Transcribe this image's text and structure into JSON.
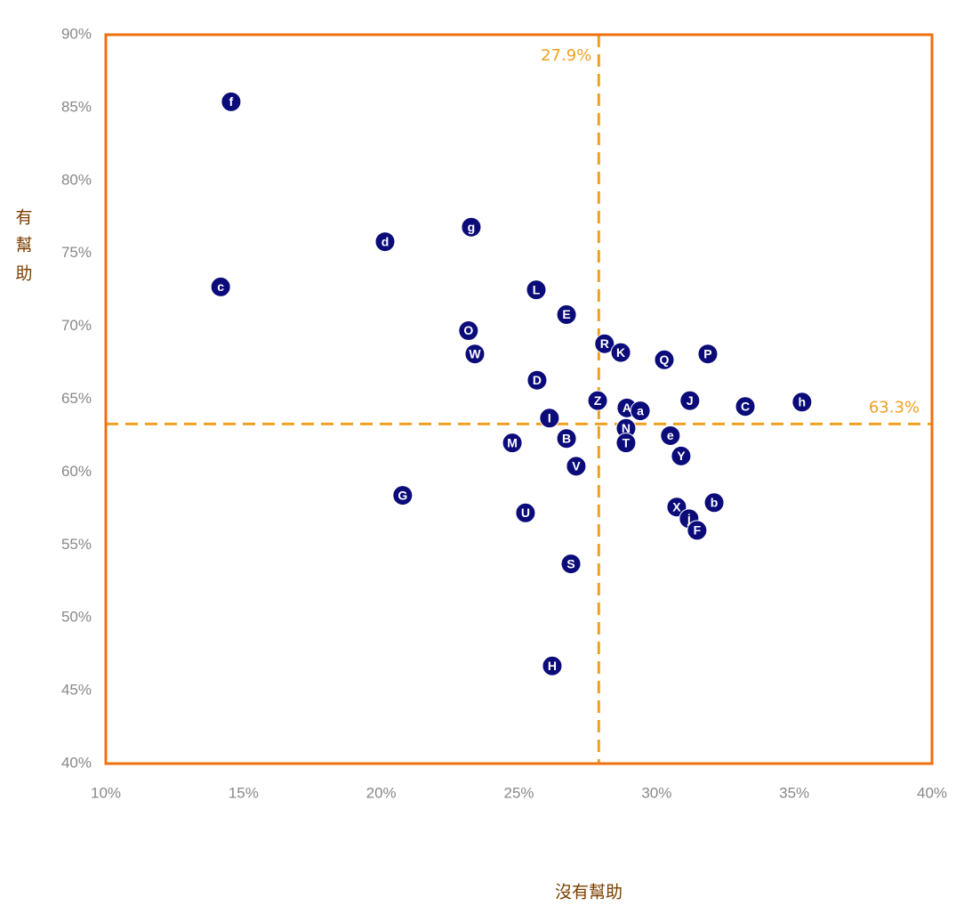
{
  "chart_data": {
    "type": "scatter",
    "x_label": "沒有幫助",
    "y_label": [
      "有",
      "幫",
      "助"
    ],
    "labels": [
      "f",
      "c",
      "d",
      "g",
      "L",
      "E",
      "O",
      "W",
      "R",
      "K",
      "Q",
      "P",
      "D",
      "Z",
      "A",
      "a",
      "J",
      "C",
      "h",
      "I",
      "N",
      "B",
      "e",
      "T",
      "M",
      "Y",
      "V",
      "G",
      "b",
      "U",
      "X",
      "j",
      "F",
      "S",
      "H"
    ],
    "x": [
      14.55,
      14.17,
      20.14,
      23.27,
      25.63,
      26.73,
      23.17,
      23.4,
      28.11,
      28.7,
      30.28,
      31.86,
      25.66,
      27.86,
      28.92,
      29.41,
      31.21,
      33.22,
      35.28,
      26.11,
      28.89,
      26.73,
      30.5,
      28.89,
      24.76,
      30.89,
      27.08,
      20.78,
      32.09,
      25.24,
      30.73,
      31.18,
      31.47,
      26.89,
      26.21
    ],
    "y": [
      85.4,
      72.7,
      75.8,
      76.8,
      72.5,
      70.8,
      69.7,
      68.1,
      68.8,
      68.2,
      67.7,
      68.1,
      66.3,
      64.9,
      64.4,
      64.2,
      64.9,
      64.5,
      64.8,
      63.7,
      63.0,
      62.3,
      62.5,
      62.0,
      62.0,
      61.1,
      60.4,
      58.4,
      57.9,
      57.2,
      57.6,
      56.8,
      56.0,
      53.7,
      46.7
    ],
    "color": "#0b0b7a",
    "xlim": [
      10,
      40
    ],
    "ylim": [
      40,
      90
    ],
    "xticks": [
      {
        "value": 10,
        "label": "10%"
      },
      {
        "value": 15,
        "label": "15%"
      },
      {
        "value": 20,
        "label": "20%"
      },
      {
        "value": 25,
        "label": "25%"
      },
      {
        "value": 30,
        "label": "30%"
      },
      {
        "value": 35,
        "label": "35%"
      },
      {
        "value": 40,
        "label": "40%"
      }
    ],
    "yticks": [
      {
        "value": 40,
        "label": "40%"
      },
      {
        "value": 45,
        "label": "45%"
      },
      {
        "value": 50,
        "label": "50%"
      },
      {
        "value": 55,
        "label": "55%"
      },
      {
        "value": 60,
        "label": "60%"
      },
      {
        "value": 65,
        "label": "65%"
      },
      {
        "value": 70,
        "label": "70%"
      },
      {
        "value": 75,
        "label": "75%"
      },
      {
        "value": 80,
        "label": "80%"
      },
      {
        "value": 85,
        "label": "85%"
      },
      {
        "value": 90,
        "label": "90%"
      }
    ],
    "reference_lines": [
      {
        "axis": "x",
        "value": 27.9,
        "label": "27.9%"
      },
      {
        "axis": "y",
        "value": 63.3,
        "label": "63.3%"
      }
    ],
    "reference_color": "#f0a020",
    "frame_color": "#f07010"
  }
}
